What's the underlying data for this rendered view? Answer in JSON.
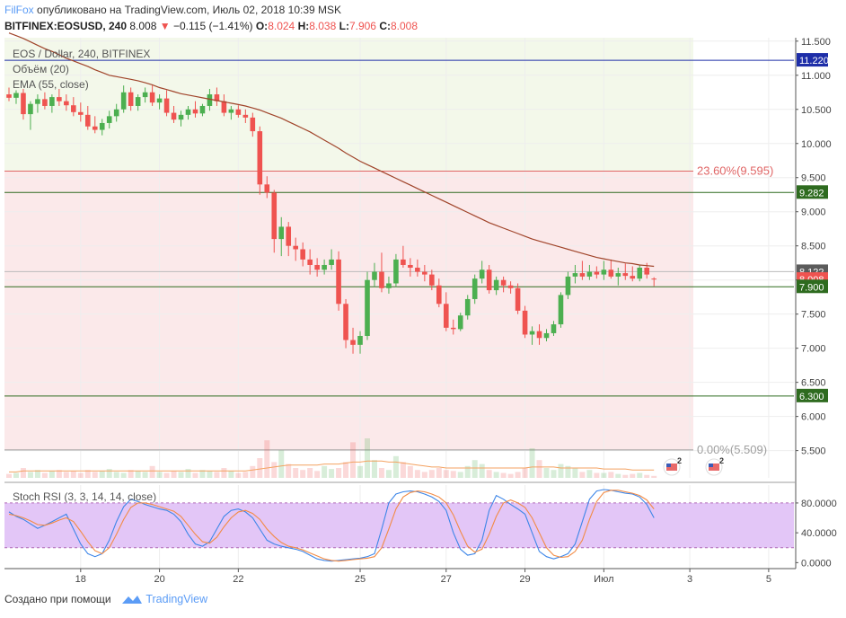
{
  "header": {
    "publisher": "FilFox",
    "published_text": "опубликовано на TradingView.com, Июль 02, 2018 10:39 MSK",
    "symbol": "BITFINEX:EOSUSD, 240",
    "last": "8.008",
    "change": "−0.115 (−1.41%)",
    "o_label": "O:",
    "o_value": "8.024",
    "h_label": "H:",
    "h_value": "8.038",
    "l_label": "L:",
    "l_value": "7.906",
    "c_label": "C:",
    "c_value": "8.008"
  },
  "legend": {
    "series_title": "EOS / Dollar, 240, BITFINEX",
    "volume": "Объём (20)",
    "ema": "EMA (55, close)",
    "stoch": "Stoch RSI (3, 3, 14, 14, close)"
  },
  "footer": {
    "created_with": "Создано при помощи",
    "brand": "TradingView"
  },
  "colors": {
    "up": "#4caf50",
    "down": "#ef5350",
    "ema": "#a0442a",
    "upper_zone": "#f3f8ea",
    "lower_zone": "#fbe9ea",
    "stoch_band": "#e3c6f7",
    "stoch_k": "#3d86e8",
    "stoch_d": "#f28b45",
    "hline_blue": "#1e2ea8",
    "hline_green": "#2e6b1f"
  },
  "chart_data": [
    {
      "type": "candlestick",
      "title": "EOS / Dollar, 240, BITFINEX",
      "x_tick_labels": [
        "18",
        "20",
        "22",
        "25",
        "27",
        "29",
        "Июл",
        "3",
        "5"
      ],
      "y_tick_labels": [
        "11.500",
        "11.000",
        "10.500",
        "10.000",
        "9.500",
        "9.000",
        "8.500",
        "8.000",
        "7.500",
        "7.000",
        "6.500",
        "6.000",
        "5.500"
      ],
      "ylim": [
        5.1,
        11.55
      ],
      "y_ticks": [
        11.5,
        11.0,
        10.5,
        10.0,
        9.5,
        9.0,
        8.5,
        8.0,
        7.5,
        7.0,
        6.5,
        6.0,
        5.5
      ],
      "price_labels": [
        {
          "value": 11.22,
          "text": "11.220",
          "color": "#1e2ea8"
        },
        {
          "value": 9.282,
          "text": "9.282",
          "color": "#2e6b1f"
        },
        {
          "value": 8.122,
          "text": "8.122",
          "color": "#5b5b5b"
        },
        {
          "value": 8.008,
          "text": "8.008",
          "color": "#ef5350"
        },
        {
          "value": 7.9,
          "text": "7.900",
          "color": "#2e6b1f"
        },
        {
          "value": 6.3,
          "text": "6.300",
          "color": "#2e6b1f"
        }
      ],
      "horizontal_lines": [
        {
          "value": 11.22,
          "color": "#1e2ea8"
        },
        {
          "value": 9.282,
          "color": "#2e6b1f"
        },
        {
          "value": 7.9,
          "color": "#2e6b1f"
        },
        {
          "value": 6.3,
          "color": "#2e6b1f"
        }
      ],
      "fibonacci": [
        {
          "value": 9.595,
          "text": "23.60%(9.595)",
          "color": "#e06666"
        },
        {
          "value": 5.509,
          "text": "0.00%(5.509)",
          "color": "#9e9e9e"
        }
      ],
      "candles": [
        [
          10.72,
          10.82,
          10.62,
          10.67
        ],
        [
          10.67,
          10.78,
          10.58,
          10.74
        ],
        [
          10.74,
          10.8,
          10.35,
          10.43
        ],
        [
          10.43,
          10.62,
          10.2,
          10.58
        ],
        [
          10.58,
          10.72,
          10.45,
          10.65
        ],
        [
          10.65,
          10.75,
          10.5,
          10.55
        ],
        [
          10.55,
          10.72,
          10.45,
          10.68
        ],
        [
          10.68,
          10.8,
          10.55,
          10.62
        ],
        [
          10.62,
          10.72,
          10.48,
          10.56
        ],
        [
          10.56,
          10.68,
          10.4,
          10.46
        ],
        [
          10.46,
          10.6,
          10.32,
          10.42
        ],
        [
          10.42,
          10.55,
          10.2,
          10.25
        ],
        [
          10.25,
          10.4,
          10.15,
          10.2
        ],
        [
          10.2,
          10.36,
          10.12,
          10.3
        ],
        [
          10.3,
          10.48,
          10.22,
          10.4
        ],
        [
          10.4,
          10.58,
          10.32,
          10.5
        ],
        [
          10.5,
          10.85,
          10.45,
          10.75
        ],
        [
          10.75,
          10.82,
          10.48,
          10.55
        ],
        [
          10.55,
          10.72,
          10.48,
          10.68
        ],
        [
          10.68,
          10.82,
          10.6,
          10.75
        ],
        [
          10.75,
          10.85,
          10.55,
          10.6
        ],
        [
          10.6,
          10.72,
          10.5,
          10.66
        ],
        [
          10.66,
          10.78,
          10.4,
          10.45
        ],
        [
          10.45,
          10.55,
          10.3,
          10.35
        ],
        [
          10.35,
          10.48,
          10.25,
          10.42
        ],
        [
          10.42,
          10.55,
          10.35,
          10.5
        ],
        [
          10.5,
          10.62,
          10.38,
          10.44
        ],
        [
          10.44,
          10.58,
          10.4,
          10.55
        ],
        [
          10.55,
          10.8,
          10.48,
          10.72
        ],
        [
          10.72,
          10.82,
          10.55,
          10.62
        ],
        [
          10.62,
          10.72,
          10.4,
          10.45
        ],
        [
          10.45,
          10.55,
          10.35,
          10.5
        ],
        [
          10.5,
          10.56,
          10.38,
          10.42
        ],
        [
          10.42,
          10.5,
          10.3,
          10.38
        ],
        [
          10.38,
          10.45,
          10.1,
          10.18
        ],
        [
          10.18,
          10.25,
          9.25,
          9.4
        ],
        [
          9.4,
          9.52,
          9.2,
          9.28
        ],
        [
          9.28,
          9.32,
          8.4,
          8.6
        ],
        [
          8.6,
          8.92,
          8.35,
          8.78
        ],
        [
          8.78,
          8.85,
          8.35,
          8.5
        ],
        [
          8.5,
          8.62,
          8.28,
          8.45
        ],
        [
          8.45,
          8.55,
          8.2,
          8.3
        ],
        [
          8.3,
          8.45,
          8.08,
          8.22
        ],
        [
          8.22,
          8.32,
          8.05,
          8.15
        ],
        [
          8.15,
          8.3,
          8.08,
          8.22
        ],
        [
          8.22,
          8.45,
          8.15,
          8.3
        ],
        [
          8.3,
          8.42,
          7.55,
          7.65
        ],
        [
          7.65,
          7.72,
          7.0,
          7.12
        ],
        [
          7.12,
          7.3,
          6.92,
          7.05
        ],
        [
          7.05,
          7.25,
          6.92,
          7.18
        ],
        [
          7.18,
          8.12,
          7.12,
          8.0
        ],
        [
          8.0,
          8.25,
          7.9,
          8.12
        ],
        [
          8.12,
          8.4,
          7.82,
          7.88
        ],
        [
          7.88,
          8.05,
          7.8,
          7.95
        ],
        [
          7.95,
          8.38,
          7.9,
          8.3
        ],
        [
          8.3,
          8.5,
          8.18,
          8.22
        ],
        [
          8.22,
          8.32,
          8.05,
          8.18
        ],
        [
          8.18,
          8.3,
          8.05,
          8.12
        ],
        [
          8.12,
          8.22,
          7.98,
          8.08
        ],
        [
          8.08,
          8.15,
          7.85,
          7.92
        ],
        [
          7.92,
          8.02,
          7.6,
          7.65
        ],
        [
          7.65,
          7.82,
          7.25,
          7.3
        ],
        [
          7.3,
          7.42,
          7.2,
          7.28
        ],
        [
          7.28,
          7.52,
          7.25,
          7.48
        ],
        [
          7.48,
          7.78,
          7.42,
          7.72
        ],
        [
          7.72,
          8.08,
          7.65,
          8.02
        ],
        [
          8.02,
          8.28,
          7.95,
          8.15
        ],
        [
          8.15,
          8.22,
          7.8,
          7.85
        ],
        [
          7.85,
          8.05,
          7.78,
          8.0
        ],
        [
          8.0,
          8.05,
          7.82,
          7.92
        ],
        [
          7.92,
          7.98,
          7.8,
          7.88
        ],
        [
          7.88,
          7.95,
          7.5,
          7.55
        ],
        [
          7.55,
          7.62,
          7.15,
          7.2
        ],
        [
          7.2,
          7.32,
          7.05,
          7.25
        ],
        [
          7.25,
          7.35,
          7.05,
          7.15
        ],
        [
          7.15,
          7.28,
          7.1,
          7.22
        ],
        [
          7.22,
          7.4,
          7.18,
          7.35
        ],
        [
          7.35,
          7.82,
          7.3,
          7.78
        ],
        [
          7.78,
          8.12,
          7.72,
          8.05
        ],
        [
          8.05,
          8.22,
          7.95,
          8.1
        ],
        [
          8.1,
          8.28,
          8.0,
          8.05
        ],
        [
          8.05,
          8.22,
          8.0,
          8.12
        ],
        [
          8.12,
          8.2,
          8.02,
          8.08
        ],
        [
          8.08,
          8.28,
          8.0,
          8.15
        ],
        [
          8.15,
          8.3,
          8.02,
          8.05
        ],
        [
          8.05,
          8.18,
          7.92,
          8.1
        ],
        [
          8.1,
          8.24,
          8.0,
          8.06
        ],
        [
          8.06,
          8.2,
          7.98,
          8.02
        ],
        [
          8.02,
          8.22,
          7.98,
          8.18
        ],
        [
          8.18,
          8.25,
          8.02,
          8.08
        ],
        [
          8.02,
          8.04,
          7.91,
          8.01
        ]
      ],
      "ema_55": [
        11.62,
        11.58,
        11.54,
        11.49,
        11.44,
        11.39,
        11.35,
        11.3,
        11.25,
        11.21,
        11.17,
        11.13,
        11.08,
        11.04,
        11.0,
        10.98,
        10.96,
        10.94,
        10.92,
        10.89,
        10.86,
        10.82,
        10.79,
        10.76,
        10.73,
        10.71,
        10.69,
        10.67,
        10.65,
        10.63,
        10.61,
        10.59,
        10.57,
        10.55,
        10.52,
        10.49,
        10.45,
        10.41,
        10.37,
        10.32,
        10.27,
        10.22,
        10.17,
        10.11,
        10.05,
        9.99,
        9.93,
        9.86,
        9.8,
        9.74,
        9.69,
        9.64,
        9.59,
        9.54,
        9.49,
        9.44,
        9.39,
        9.34,
        9.29,
        9.24,
        9.19,
        9.14,
        9.09,
        9.04,
        8.99,
        8.94,
        8.89,
        8.84,
        8.8,
        8.76,
        8.72,
        8.68,
        8.64,
        8.6,
        8.57,
        8.54,
        8.51,
        8.48,
        8.45,
        8.42,
        8.39,
        8.36,
        8.33,
        8.31,
        8.29,
        8.27,
        8.25,
        8.24,
        8.22,
        8.21,
        8.2
      ],
      "volume": [
        0.04,
        0.05,
        0.1,
        0.06,
        0.08,
        0.05,
        0.07,
        0.08,
        0.06,
        0.07,
        0.05,
        0.08,
        0.06,
        0.07,
        0.09,
        0.06,
        0.05,
        0.08,
        0.07,
        0.06,
        0.12,
        0.06,
        0.05,
        0.07,
        0.06,
        0.09,
        0.05,
        0.08,
        0.07,
        0.06,
        0.1,
        0.07,
        0.05,
        0.06,
        0.12,
        0.2,
        0.38,
        0.16,
        0.28,
        0.14,
        0.1,
        0.08,
        0.1,
        0.07,
        0.12,
        0.09,
        0.1,
        0.16,
        0.36,
        0.12,
        0.4,
        0.18,
        0.1,
        0.08,
        0.22,
        0.16,
        0.12,
        0.08,
        0.06,
        0.08,
        0.1,
        0.08,
        0.07,
        0.06,
        0.12,
        0.18,
        0.14,
        0.08,
        0.06,
        0.05,
        0.04,
        0.06,
        0.1,
        0.3,
        0.18,
        0.1,
        0.08,
        0.14,
        0.12,
        0.1,
        0.06,
        0.08,
        0.05,
        0.05,
        0.06,
        0.04,
        0.03,
        0.04,
        0.05,
        0.03,
        0.02
      ],
      "volume_ma": [
        0.06,
        0.06,
        0.07,
        0.07,
        0.07,
        0.07,
        0.07,
        0.07,
        0.07,
        0.07,
        0.07,
        0.07,
        0.07,
        0.07,
        0.07,
        0.07,
        0.07,
        0.07,
        0.07,
        0.07,
        0.07,
        0.07,
        0.07,
        0.07,
        0.07,
        0.07,
        0.07,
        0.07,
        0.07,
        0.07,
        0.07,
        0.07,
        0.07,
        0.07,
        0.08,
        0.09,
        0.1,
        0.11,
        0.12,
        0.13,
        0.13,
        0.13,
        0.13,
        0.13,
        0.14,
        0.14,
        0.14,
        0.15,
        0.16,
        0.16,
        0.17,
        0.17,
        0.17,
        0.16,
        0.16,
        0.15,
        0.14,
        0.13,
        0.12,
        0.11,
        0.11,
        0.1,
        0.1,
        0.1,
        0.1,
        0.1,
        0.1,
        0.1,
        0.1,
        0.1,
        0.1,
        0.1,
        0.1,
        0.11,
        0.11,
        0.11,
        0.11,
        0.1,
        0.1,
        0.1,
        0.1,
        0.1,
        0.1,
        0.09,
        0.09,
        0.09,
        0.09,
        0.08,
        0.08,
        0.08,
        0.08
      ]
    },
    {
      "type": "line",
      "title": "Stoch RSI (3, 3, 14, 14, close)",
      "y_tick_labels": [
        "80.0000",
        "40.0000",
        "0.0000"
      ],
      "ylim": [
        -8,
        104
      ],
      "y_ticks": [
        80,
        40,
        0
      ],
      "band": [
        20,
        80
      ],
      "x_tick_labels": [
        "18",
        "20",
        "22",
        "25",
        "27",
        "29",
        "Июл",
        "3",
        "5"
      ],
      "series": [
        {
          "color": "#3d86e8",
          "values": [
            68,
            62,
            58,
            52,
            46,
            50,
            55,
            60,
            65,
            45,
            25,
            12,
            8,
            12,
            30,
            55,
            75,
            85,
            82,
            78,
            75,
            72,
            70,
            65,
            55,
            38,
            25,
            22,
            28,
            45,
            62,
            70,
            72,
            68,
            60,
            45,
            30,
            25,
            22,
            20,
            18,
            15,
            10,
            5,
            3,
            2,
            3,
            4,
            5,
            6,
            8,
            12,
            45,
            80,
            92,
            95,
            96,
            95,
            92,
            88,
            82,
            70,
            40,
            18,
            10,
            12,
            30,
            70,
            90,
            85,
            78,
            72,
            65,
            40,
            15,
            8,
            5,
            8,
            12,
            25,
            55,
            85,
            96,
            98,
            97,
            95,
            93,
            92,
            88,
            78,
            60
          ]
        },
        {
          "color": "#f28b45",
          "values": [
            65,
            63,
            60,
            56,
            51,
            50,
            53,
            57,
            60,
            55,
            42,
            28,
            16,
            12,
            20,
            38,
            58,
            74,
            80,
            80,
            78,
            75,
            72,
            69,
            62,
            50,
            38,
            28,
            26,
            34,
            48,
            60,
            68,
            70,
            66,
            58,
            45,
            35,
            27,
            22,
            20,
            17,
            13,
            9,
            5,
            3,
            2,
            3,
            4,
            5,
            6,
            8,
            20,
            45,
            72,
            88,
            94,
            96,
            95,
            92,
            88,
            80,
            64,
            42,
            22,
            14,
            18,
            38,
            62,
            80,
            84,
            80,
            74,
            60,
            40,
            20,
            10,
            7,
            8,
            15,
            30,
            58,
            82,
            94,
            97,
            97,
            95,
            93,
            90,
            84,
            72
          ]
        }
      ]
    }
  ]
}
